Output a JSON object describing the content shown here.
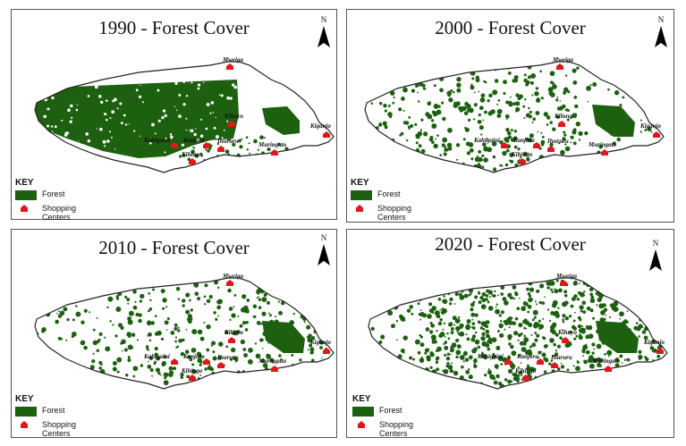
{
  "north_label": "N",
  "colors": {
    "forest": "#1d6010",
    "shop": "#e3161c",
    "boundary": "#222222"
  },
  "key": {
    "title": "KEY",
    "forest_label": "Forest",
    "shop_label": "Shopping Centers"
  },
  "towns": [
    "Mweiga",
    "Kihuyo",
    "Kiganjo",
    "Kahigaini",
    "Kanjora",
    "Ihururu",
    "Muringato",
    "Kihingo"
  ],
  "maps": [
    {
      "title": "1990 - Forest Cover",
      "year": 1990
    },
    {
      "title": "2000 - Forest Cover",
      "year": 2000
    },
    {
      "title": "2010 - Forest Cover",
      "year": 2010
    },
    {
      "title": "2020 - Forest Cover",
      "year": 2020
    }
  ]
}
